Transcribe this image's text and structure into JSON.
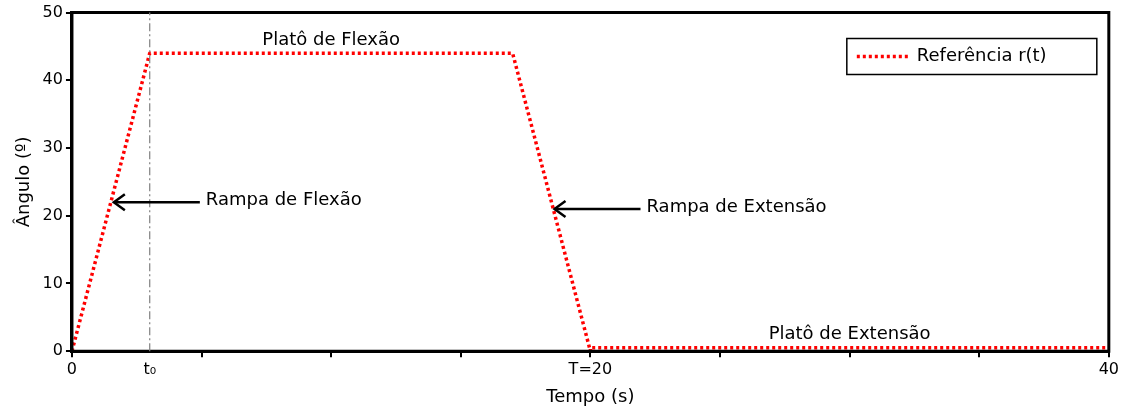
{
  "chart_data": {
    "type": "line",
    "xlabel": "Tempo (s)",
    "ylabel": "Ângulo (º)",
    "x": [
      0,
      3,
      17,
      20,
      20,
      40
    ],
    "series": [
      {
        "name": "Referência r(t)",
        "color": "#ff0000",
        "values": [
          0,
          44,
          44,
          0,
          0.5,
          0.5
        ]
      }
    ],
    "xlim": [
      0,
      40
    ],
    "ylim": [
      0,
      50
    ],
    "xticks": [
      0,
      {
        "value": 3,
        "label": "t₀"
      },
      {
        "value": 5,
        "label": null
      },
      {
        "value": 10,
        "label": null
      },
      {
        "value": 15,
        "label": null
      },
      {
        "value": 20,
        "label": "T=20"
      },
      {
        "value": 25,
        "label": null
      },
      {
        "value": 30,
        "label": null
      },
      {
        "value": 35,
        "label": null
      },
      40
    ],
    "yticks": [
      0,
      10,
      20,
      30,
      40,
      50
    ],
    "ref_lines": [
      {
        "axis": "x",
        "value": 3,
        "color": "#808080",
        "line_style": "dashdot"
      }
    ],
    "annotations": [
      {
        "text": "Platô de Flexão",
        "x": 10,
        "y": 44
      },
      {
        "text": "Rampa de Flexão",
        "x": 1.5,
        "y": 22
      },
      {
        "text": "Rampa de Extensão",
        "x": 18.5,
        "y": 21
      },
      {
        "text": "Platô de Extensão",
        "x": 30,
        "y": 0.5
      }
    ],
    "legend": "top right",
    "grid": false,
    "marker": "none",
    "line_style": "dotted"
  }
}
